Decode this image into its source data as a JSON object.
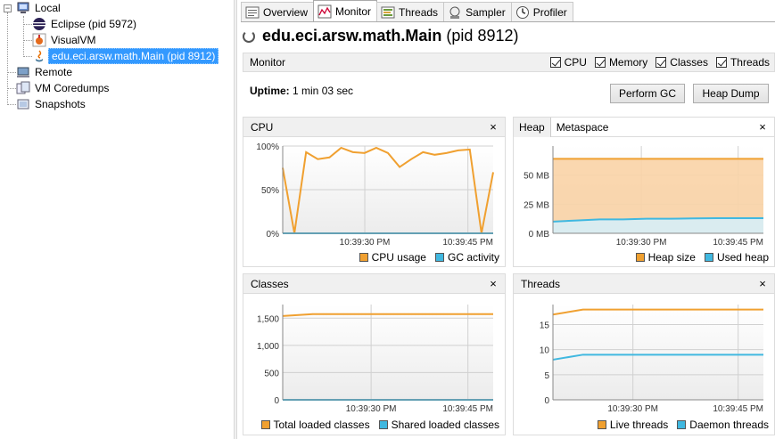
{
  "tree": {
    "items": [
      {
        "label": "Local"
      },
      {
        "label": "Eclipse (pid 5972)"
      },
      {
        "label": "VisualVM"
      },
      {
        "label": "edu.eci.arsw.math.Main (pid 8912)"
      },
      {
        "label": "Remote"
      },
      {
        "label": "VM Coredumps"
      },
      {
        "label": "Snapshots"
      }
    ]
  },
  "tabs": [
    {
      "label": "Overview"
    },
    {
      "label": "Monitor"
    },
    {
      "label": "Threads"
    },
    {
      "label": "Sampler"
    },
    {
      "label": "Profiler"
    }
  ],
  "title": {
    "main": "edu.eci.arsw.math.Main",
    "pid": "(pid 8912)"
  },
  "monitor_bar": {
    "label": "Monitor",
    "checks": [
      {
        "label": "CPU",
        "checked": true
      },
      {
        "label": "Memory",
        "checked": true
      },
      {
        "label": "Classes",
        "checked": true
      },
      {
        "label": "Threads",
        "checked": true
      }
    ]
  },
  "uptime": {
    "label": "Uptime:",
    "value": "1 min 03 sec"
  },
  "buttons": {
    "gc": "Perform GC",
    "dump": "Heap Dump"
  },
  "colors": {
    "orange": "#f0a030",
    "blue": "#40b8e0",
    "orange_fill": "#fad3a6",
    "blue_fill": "#d6eef7"
  },
  "panels": {
    "cpu": {
      "title": "CPU",
      "close": "×"
    },
    "heap": {
      "tab_heap": "Heap",
      "tab_meta": "Metaspace",
      "close": "×"
    },
    "classes": {
      "title": "Classes",
      "close": "×"
    },
    "threads": {
      "title": "Threads",
      "close": "×"
    }
  },
  "chart_data": [
    {
      "type": "line",
      "name": "CPU",
      "x_ticks": [
        "10:39:30 PM",
        "10:39:45 PM"
      ],
      "y_ticks": [
        "100%",
        "50%",
        "0%"
      ],
      "ylim": [
        0,
        100
      ],
      "series": [
        {
          "name": "CPU usage",
          "color": "#f0a030",
          "values": [
            75,
            0,
            93,
            85,
            87,
            98,
            93,
            92,
            98,
            92,
            76,
            85,
            93,
            90,
            92,
            95,
            96,
            0,
            70
          ]
        },
        {
          "name": "GC activity",
          "color": "#40b8e0",
          "values": [
            0,
            0,
            0,
            0,
            0,
            0,
            0,
            0,
            0,
            0,
            0,
            0,
            0,
            0,
            0,
            0,
            0,
            0,
            0
          ]
        }
      ],
      "legend": [
        "CPU usage",
        "GC activity"
      ]
    },
    {
      "type": "area",
      "name": "Heap",
      "x_ticks": [
        "10:39:30 PM",
        "10:39:45 PM"
      ],
      "y_ticks": [
        "50 MB",
        "25 MB",
        "0 MB"
      ],
      "ylim": [
        0,
        75
      ],
      "series": [
        {
          "name": "Heap size",
          "color": "#f0a030",
          "values": [
            64,
            64,
            64,
            64,
            64,
            64,
            64,
            64,
            64,
            64
          ]
        },
        {
          "name": "Used heap",
          "color": "#40b8e0",
          "values": [
            10,
            11,
            12,
            12,
            12.5,
            12.5,
            12.8,
            13,
            13,
            13
          ]
        }
      ],
      "legend": [
        "Heap size",
        "Used heap"
      ]
    },
    {
      "type": "line",
      "name": "Classes",
      "x_ticks": [
        "10:39:30 PM",
        "10:39:45 PM"
      ],
      "y_ticks": [
        "1,500",
        "1,000",
        "500",
        "0"
      ],
      "ylim": [
        0,
        1750
      ],
      "series": [
        {
          "name": "Total loaded classes",
          "color": "#f0a030",
          "values": [
            1540,
            1575,
            1575,
            1575,
            1575,
            1575,
            1575,
            1575
          ]
        },
        {
          "name": "Shared loaded classes",
          "color": "#40b8e0",
          "values": [
            0,
            0,
            0,
            0,
            0,
            0,
            0,
            0
          ]
        }
      ],
      "legend": [
        "Total loaded classes",
        "Shared loaded classes"
      ]
    },
    {
      "type": "line",
      "name": "Threads",
      "x_ticks": [
        "10:39:30 PM",
        "10:39:45 PM"
      ],
      "y_ticks": [
        "15",
        "10",
        "5",
        "0"
      ],
      "ylim": [
        0,
        19
      ],
      "series": [
        {
          "name": "Live threads",
          "color": "#f0a030",
          "values": [
            17,
            18,
            18,
            18,
            18,
            18,
            18,
            18
          ]
        },
        {
          "name": "Daemon threads",
          "color": "#40b8e0",
          "values": [
            8,
            9,
            9,
            9,
            9,
            9,
            9,
            9
          ]
        }
      ],
      "legend": [
        "Live threads",
        "Daemon threads"
      ]
    }
  ]
}
